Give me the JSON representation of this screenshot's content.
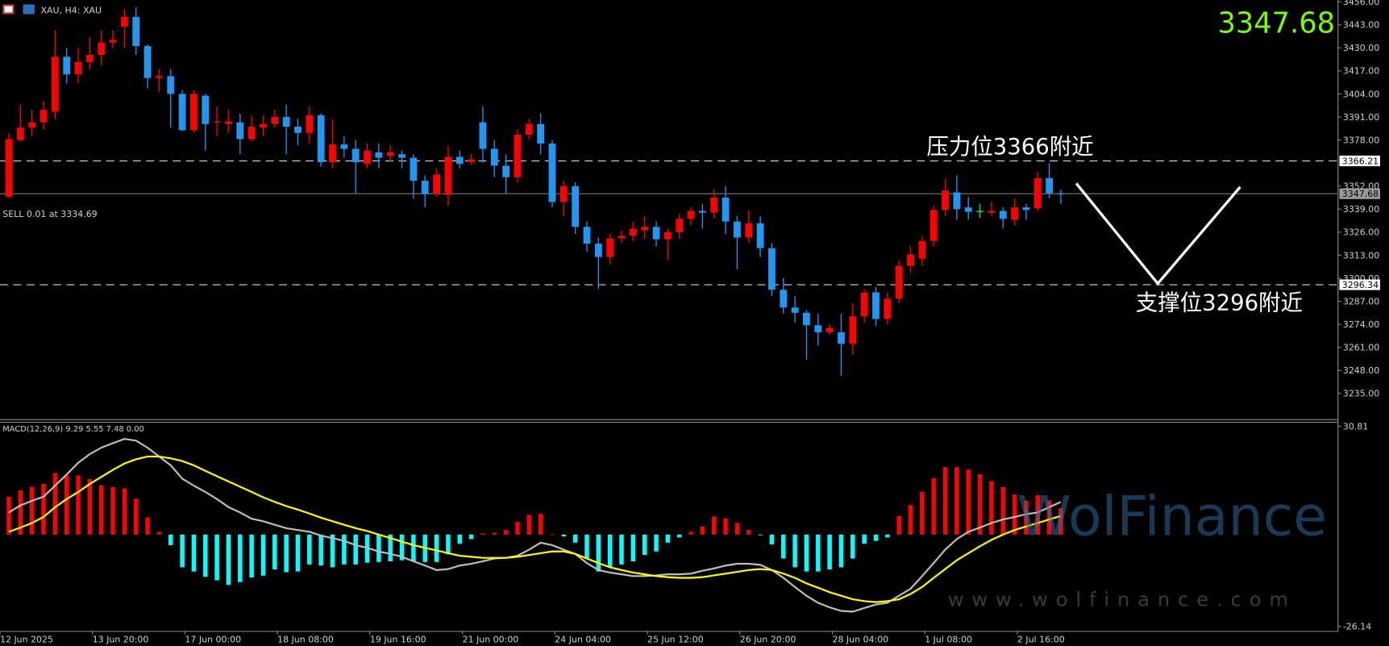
{
  "chart_data": [
    {
      "type": "candlestick",
      "title": "XAU, H4:  XAU",
      "open": [
        3346,
        3378,
        3385,
        3388,
        3394,
        3425,
        3415,
        3422,
        3426,
        3433,
        3442,
        3447.5,
        3431,
        3413,
        3414,
        3404,
        3383.5,
        3403,
        3388,
        3387,
        3388,
        3378.5,
        3385,
        3387,
        3391,
        3385.5,
        3382,
        3392,
        3365.5,
        3375.5,
        3373,
        3364.5,
        3371,
        3369,
        3370,
        3368,
        3355,
        3347.5,
        3347,
        3368.5,
        3365.5,
        3388,
        3373,
        3363.5,
        3357,
        3381,
        3387,
        3376,
        3343,
        3352,
        3329,
        3319.5,
        3312,
        3322.5,
        3324,
        3327,
        3329,
        3322,
        3326,
        3333.5,
        3338,
        3337,
        3345.5,
        3332,
        3323,
        3331,
        3317,
        3293.5,
        3283.5,
        3280.5,
        3273.5,
        3269.5,
        3269.5,
        3263,
        3278.5,
        3292,
        3277,
        3288.5,
        3307,
        3311,
        3321,
        3338.5,
        3348.5,
        3340,
        3338,
        3337,
        3338,
        3333,
        3340,
        3339.5,
        3356.5,
        3348
      ],
      "high": [
        3382,
        3398,
        3395,
        3400,
        3440,
        3430,
        3430,
        3436,
        3440,
        3440,
        3452,
        3453,
        3432,
        3418,
        3418,
        3406,
        3406,
        3404,
        3397,
        3395,
        3393,
        3392,
        3392,
        3395,
        3398,
        3390,
        3397,
        3393,
        3390,
        3380,
        3378,
        3376,
        3376,
        3375,
        3372,
        3370,
        3358,
        3362,
        3375,
        3372,
        3370,
        3397,
        3378,
        3370,
        3384,
        3390,
        3393,
        3378,
        3355,
        3354,
        3332,
        3323,
        3325,
        3327,
        3332,
        3335,
        3332,
        3328,
        3336,
        3340,
        3342,
        3350,
        3352,
        3335,
        3338,
        3335,
        3320,
        3300,
        3290,
        3282,
        3280,
        3274,
        3280,
        3286,
        3294,
        3295,
        3292,
        3310,
        3318,
        3324,
        3341,
        3356,
        3358,
        3346,
        3342,
        3343,
        3340,
        3345,
        3342,
        3360,
        3365,
        3350
      ],
      "low": [
        3345,
        3377,
        3380,
        3384,
        3390,
        3410,
        3410,
        3418,
        3420,
        3430,
        3430,
        3426,
        3407,
        3405,
        3385,
        3383,
        3382,
        3372,
        3380,
        3382,
        3370,
        3377,
        3380,
        3385,
        3370,
        3375,
        3376,
        3363,
        3362,
        3368,
        3348,
        3362,
        3362,
        3366,
        3362,
        3345,
        3340,
        3346,
        3341,
        3362,
        3364,
        3365,
        3357,
        3348,
        3354,
        3378,
        3370,
        3340,
        3335,
        3325,
        3315,
        3294,
        3308,
        3320,
        3321,
        3322,
        3318,
        3310,
        3322,
        3330,
        3328,
        3334,
        3325,
        3305,
        3320,
        3312,
        3290,
        3280,
        3275,
        3254,
        3262,
        3268,
        3245,
        3257,
        3275,
        3273,
        3274,
        3286,
        3303,
        3307,
        3318,
        3335,
        3333,
        3333,
        3334,
        3335,
        3328,
        3330,
        3333,
        3338,
        3345,
        3342
      ],
      "close": [
        3378.5,
        3385,
        3388,
        3395,
        3425,
        3415,
        3422,
        3426,
        3433,
        3434.5,
        3447.5,
        3431,
        3413,
        3414,
        3404,
        3383.5,
        3404,
        3387,
        3388.5,
        3388.5,
        3378.5,
        3385.5,
        3387,
        3391,
        3385.5,
        3382,
        3392,
        3365.5,
        3375.5,
        3373,
        3365.5,
        3372,
        3368,
        3371,
        3368,
        3355,
        3347.5,
        3358.5,
        3368.5,
        3364.5,
        3367,
        3373,
        3363.5,
        3357,
        3381,
        3387,
        3376,
        3343,
        3352,
        3329,
        3319.5,
        3312,
        3322.5,
        3324,
        3328,
        3329,
        3322,
        3326,
        3333.5,
        3338,
        3337,
        3345.5,
        3332,
        3323,
        3331,
        3317,
        3293.5,
        3283.5,
        3280.5,
        3273.5,
        3269.5,
        3272,
        3263,
        3278.5,
        3292,
        3277,
        3288.5,
        3307,
        3313.5,
        3321,
        3338.5,
        3349.5,
        3339,
        3337.5,
        3338,
        3338,
        3333.5,
        3340,
        3338.5,
        3356.5,
        3348,
        3347.68
      ],
      "up_color": "#ff0000",
      "down_color": "#2196f3",
      "doji_color": "#00ff00",
      "ylim": [
        3221,
        3457
      ],
      "yticks": [
        {
          "value": 3456,
          "label": "3456.00"
        },
        {
          "value": 3443,
          "label": "3443.00"
        },
        {
          "value": 3430,
          "label": "3430.00"
        },
        {
          "value": 3417,
          "label": "3417.00"
        },
        {
          "value": 3404,
          "label": "3404.00"
        },
        {
          "value": 3391,
          "label": "3391.00"
        },
        {
          "value": 3378,
          "label": "3378.00"
        },
        {
          "value": 3352,
          "label": "3352.00"
        },
        {
          "value": 3339,
          "label": "3339.00"
        },
        {
          "value": 3326,
          "label": "3326.00"
        },
        {
          "value": 3313,
          "label": "3313.00"
        },
        {
          "value": 3300,
          "label": "3300.00"
        },
        {
          "value": 3287,
          "label": "3287.00"
        },
        {
          "value": 3274,
          "label": "3274.00"
        },
        {
          "value": 3261,
          "label": "3261.00"
        },
        {
          "value": 3248,
          "label": "3248.00"
        },
        {
          "value": 3235,
          "label": "3235.00"
        }
      ],
      "xticks": [
        {
          "value": 0,
          "label": "12 Jun 2025"
        },
        {
          "value": 8,
          "label": "13 Jun 20:00"
        },
        {
          "value": 16,
          "label": "17 Jun 00:00"
        },
        {
          "value": 24,
          "label": "18 Jun 08:00"
        },
        {
          "value": 32,
          "label": "19 Jun 16:00"
        },
        {
          "value": 40,
          "label": "21 Jun 00:00"
        },
        {
          "value": 48,
          "label": "24 Jun 04:00"
        },
        {
          "value": 56,
          "label": "25 Jun 12:00"
        },
        {
          "value": 64,
          "label": "26 Jun 20:00"
        },
        {
          "value": 72,
          "label": "28 Jun 04:00"
        },
        {
          "value": 80,
          "label": "1 Jul 08:00"
        },
        {
          "value": 88,
          "label": "2 Jul 16:00"
        }
      ],
      "levels": [
        3366.21,
        3296.34
      ],
      "current_price": 3347.68,
      "annotations": [
        "压力位3366附近",
        "支撑位3296附近",
        "SELL 0.01 at 3334.69"
      ],
      "watermark": [
        "WolFinance",
        "www.wolfinance.com"
      ]
    },
    {
      "type": "macd",
      "title": "MACD(12,26,9) 9.29 5.55 7.48 0.00",
      "histogram": [
        10.8,
        12.6,
        13.6,
        14.4,
        17.5,
        16.8,
        16.8,
        15.8,
        14,
        13.5,
        13.2,
        10.2,
        4.9,
        0.8,
        -3,
        -9.3,
        -10.5,
        -12,
        -13,
        -14.3,
        -13.5,
        -12.2,
        -11.7,
        -9.9,
        -10.7,
        -10.5,
        -8.5,
        -8.8,
        -9.3,
        -8.5,
        -8.5,
        -8,
        -7.8,
        -7.6,
        -7.3,
        -7.6,
        -7.8,
        -7.8,
        -5.6,
        -2.6,
        -1.3,
        0.3,
        0.5,
        1.3,
        3.6,
        5.6,
        5.9,
        0.1,
        -0.5,
        -2.3,
        -6.8,
        -10.5,
        -9.3,
        -8.5,
        -7.6,
        -5.8,
        -4.8,
        -2.3,
        -0.8,
        0.8,
        2.3,
        5.1,
        4.6,
        3.3,
        1.3,
        -0.2,
        -2.8,
        -6.8,
        -9.3,
        -10.5,
        -10.5,
        -9.9,
        -9.3,
        -6.8,
        -2.6,
        -1.8,
        -0.8,
        5.3,
        8.4,
        12.2,
        16,
        19.2,
        19.2,
        18.5,
        17.2,
        15.2,
        13.5,
        11.4,
        9.7,
        11.2,
        9.7,
        7.5
      ],
      "positive_color": "#ff0000",
      "negative_color": "#00ffff",
      "series": [
        {
          "color": "#bdbdbd",
          "values": [
            6.3,
            8.3,
            9.6,
            10.8,
            13.9,
            17.1,
            20.4,
            22.9,
            24.7,
            26.0,
            27.2,
            26.7,
            24.7,
            22.2,
            19.7,
            15.9,
            13.9,
            12.1,
            10.1,
            7.8,
            6.3,
            4.5,
            3.8,
            2.8,
            1.8,
            1.3,
            0.8,
            -0.3,
            -1.0,
            -1.8,
            -3.0,
            -3.8,
            -4.8,
            -5.5,
            -6.3,
            -7.6,
            -8.8,
            -10.1,
            -9.8,
            -8.8,
            -8.3,
            -7.6,
            -6.8,
            -6.6,
            -6.0,
            -4.3,
            -2.3,
            -3.0,
            -4.3,
            -5.5,
            -8.1,
            -10.1,
            -10.8,
            -11.3,
            -11.8,
            -11.8,
            -11.6,
            -11.3,
            -11.3,
            -11.1,
            -10.3,
            -9.6,
            -8.8,
            -8.3,
            -8.3,
            -8.6,
            -10.1,
            -12.3,
            -14.9,
            -17.4,
            -19.4,
            -20.7,
            -21.7,
            -21.9,
            -20.9,
            -19.9,
            -19.4,
            -17.4,
            -15.4,
            -11.8,
            -8.1,
            -4.3,
            -1.3,
            0.8,
            2.0,
            3.3,
            4.3,
            5.0,
            5.8,
            6.3,
            7.8,
            9.3
          ]
        },
        {
          "color": "#ffff00",
          "values": [
            0.8,
            2.0,
            3.3,
            5.0,
            7.8,
            10.1,
            12.1,
            14.4,
            16.4,
            18.4,
            20.2,
            21.4,
            22.2,
            22.2,
            21.7,
            20.9,
            19.7,
            18.1,
            16.6,
            15.1,
            13.6,
            12.1,
            10.6,
            9.3,
            8.1,
            7.1,
            6.0,
            4.8,
            3.8,
            2.8,
            1.8,
            1.0,
            0.0,
            -1.0,
            -2.0,
            -3.0,
            -3.8,
            -4.5,
            -5.3,
            -6.0,
            -6.3,
            -6.6,
            -6.6,
            -6.6,
            -6.3,
            -5.8,
            -5.3,
            -4.8,
            -4.8,
            -5.5,
            -6.8,
            -8.1,
            -9.3,
            -10.1,
            -10.8,
            -11.3,
            -11.8,
            -12.1,
            -12.3,
            -12.3,
            -12.1,
            -11.6,
            -11.1,
            -10.6,
            -10.1,
            -9.8,
            -10.1,
            -11.1,
            -12.3,
            -13.9,
            -15.1,
            -16.4,
            -17.4,
            -18.4,
            -18.9,
            -19.2,
            -18.9,
            -18.4,
            -16.9,
            -14.9,
            -12.3,
            -9.8,
            -7.3,
            -5.3,
            -3.3,
            -1.5,
            0.0,
            1.3,
            2.3,
            3.3,
            4.3,
            5.3
          ]
        }
      ],
      "ylim": [
        -26.14,
        30.81
      ],
      "yticks": [
        -26.14,
        30.81
      ]
    }
  ]
}
